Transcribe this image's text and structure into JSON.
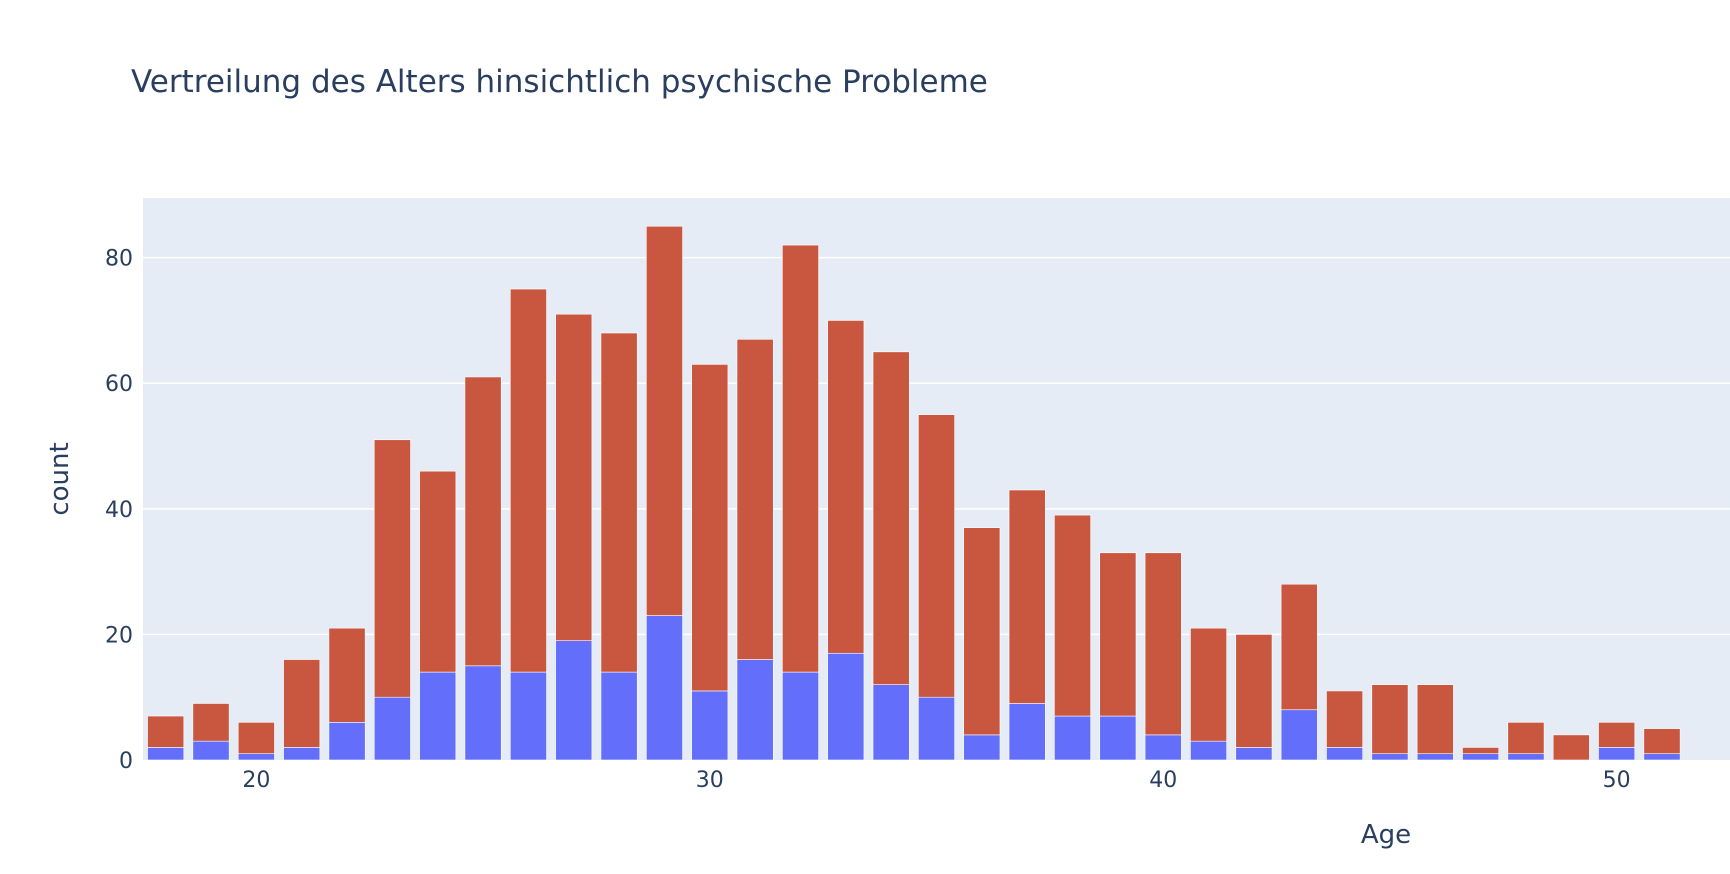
{
  "chart_data": {
    "type": "bar",
    "stacked": true,
    "title": "Vertreilung des Alters hinsichtlich psychische Probleme",
    "xlabel": "Age",
    "ylabel": "count",
    "x_ticks": [
      20,
      30,
      40,
      50
    ],
    "y_ticks": [
      0,
      20,
      40,
      60,
      80
    ],
    "xlim": [
      17.5,
      52.5
    ],
    "ylim": [
      0,
      89.5
    ],
    "grid": true,
    "legend": "none",
    "colors": {
      "series_lower": "#636efa",
      "series_upper": "#c9573f",
      "plot_bg": "#e5ecf6",
      "text": "#2a3f5f"
    },
    "x": [
      18,
      19,
      20,
      21,
      22,
      23,
      24,
      25,
      26,
      27,
      28,
      29,
      30,
      31,
      32,
      33,
      34,
      35,
      36,
      37,
      38,
      39,
      40,
      41,
      42,
      43,
      44,
      45,
      46,
      47,
      48,
      49,
      50,
      51
    ],
    "series": [
      {
        "values": [
          2,
          3,
          1,
          2,
          6,
          10,
          14,
          15,
          14,
          19,
          14,
          23,
          11,
          16,
          14,
          17,
          12,
          10,
          4,
          9,
          7,
          7,
          4,
          3,
          2,
          8,
          2,
          1,
          1,
          1,
          1,
          0,
          2,
          1
        ]
      },
      {
        "values": [
          5,
          6,
          5,
          14,
          15,
          41,
          32,
          46,
          61,
          52,
          54,
          62,
          52,
          51,
          68,
          53,
          53,
          45,
          33,
          34,
          32,
          26,
          29,
          18,
          18,
          20,
          9,
          11,
          11,
          1,
          5,
          4,
          4,
          4
        ]
      }
    ]
  }
}
